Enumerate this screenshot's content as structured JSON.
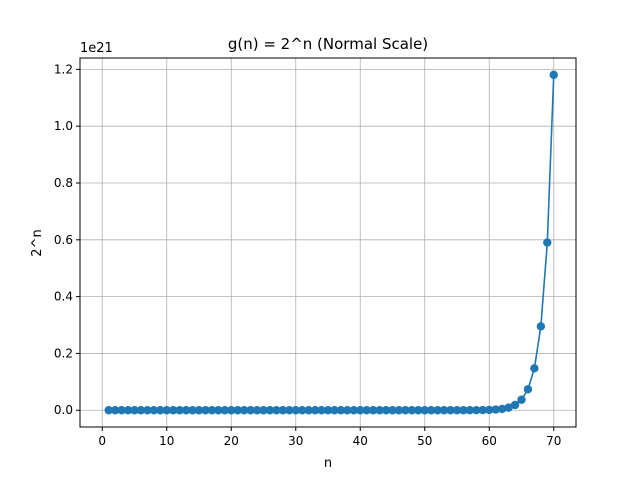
{
  "chart_data": {
    "type": "line",
    "title": "g(n) = 2^n (Normal Scale)",
    "xlabel": "n",
    "ylabel": "2^n",
    "y_offset_label": "1e21",
    "xlim": [
      -3.45,
      73.45
    ],
    "ylim": [
      -0.059,
      1.24
    ],
    "x_ticks": [
      0,
      10,
      20,
      30,
      40,
      50,
      60,
      70
    ],
    "y_ticks": [
      0.0,
      0.2,
      0.4,
      0.6,
      0.8,
      1.0,
      1.2
    ],
    "y_tick_labels": [
      "0.0",
      "0.2",
      "0.4",
      "0.6",
      "0.8",
      "1.0",
      "1.2"
    ],
    "grid": true,
    "marker": "circle",
    "y_scale_note": "values in units of 1e21",
    "series": [
      {
        "x_start": 1,
        "x_end": 70,
        "formula": "2^n",
        "color": "#1f77b4"
      }
    ]
  }
}
